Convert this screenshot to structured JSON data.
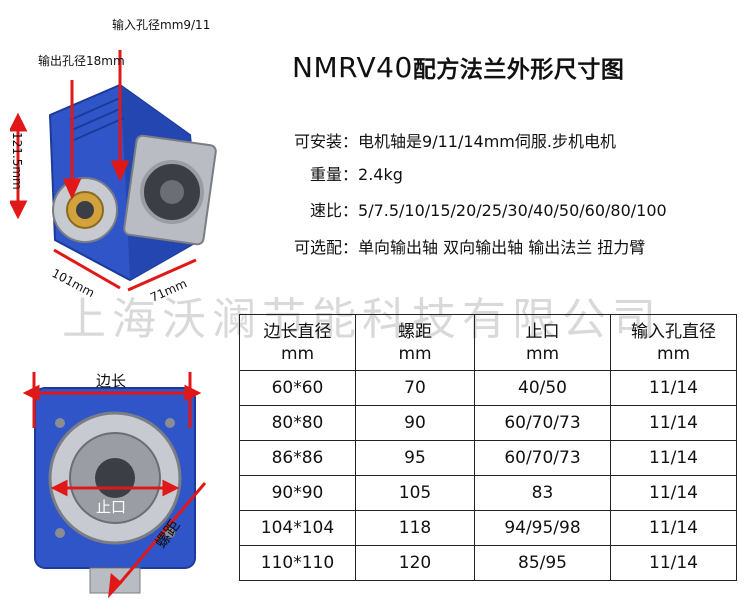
{
  "title": {
    "model": "NMRV40",
    "suffix": "配方法兰外形尺寸图"
  },
  "specs": [
    {
      "label": "可安装",
      "value": "电机轴是9/11/14mm伺服.步机电机"
    },
    {
      "label": "重量",
      "value": "2.4kg"
    },
    {
      "label": "速比",
      "value": "5/7.5/10/15/20/25/30/40/50/60/80/100"
    },
    {
      "label": "可选配",
      "value": "单向输出轴 双向输出轴 输出法兰 扭力臂"
    }
  ],
  "watermark": "上海沃澜节能科技有限公司",
  "diagram": {
    "input_bore": "输入孔径mm9/11",
    "output_bore": "输出孔径18mm",
    "height": "121.5mm",
    "depth": "101mm",
    "width": "71mm",
    "side_length": "边长",
    "spigot": "止口",
    "bolt_distance": "螺距"
  },
  "table": {
    "headers": [
      {
        "name": "边长直径",
        "unit": "mm"
      },
      {
        "name": "螺距",
        "unit": "mm"
      },
      {
        "name": "止口",
        "unit": "mm"
      },
      {
        "name": "输入孔直径",
        "unit": "mm"
      }
    ],
    "rows": [
      [
        "60*60",
        "70",
        "40/50",
        "11/14"
      ],
      [
        "80*80",
        "90",
        "60/70/73",
        "11/14"
      ],
      [
        "86*86",
        "95",
        "60/70/73",
        "11/14"
      ],
      [
        "90*90",
        "105",
        "83",
        "11/14"
      ],
      [
        "104*104",
        "118",
        "94/95/98",
        "11/14"
      ],
      [
        "110*110",
        "120",
        "85/95",
        "11/14"
      ]
    ]
  },
  "colors": {
    "housing": "#2f55c8",
    "arrow": "#e01818",
    "metal": "#b9bcc2"
  }
}
